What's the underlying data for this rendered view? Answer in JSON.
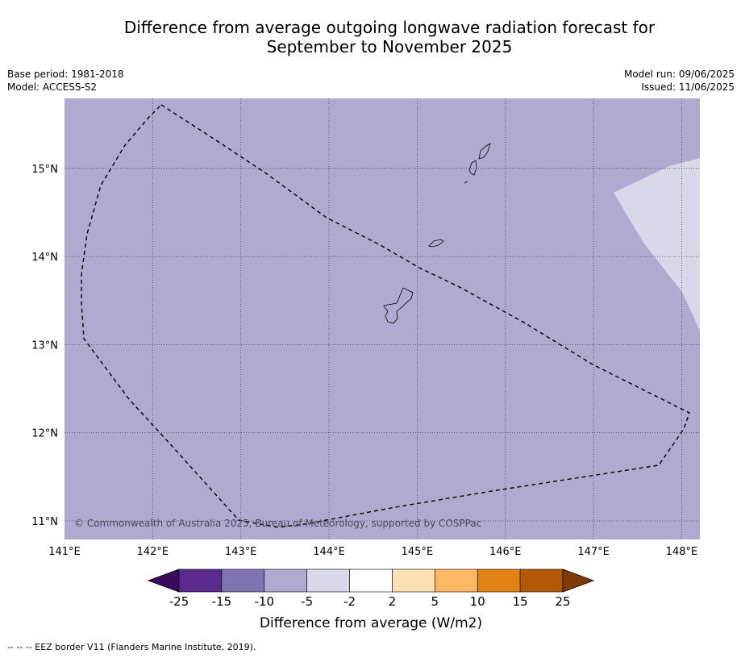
{
  "title": {
    "line1": "Difference from average outgoing longwave radiation forecast for",
    "line2": "September to November 2025"
  },
  "meta": {
    "base_period": "Base period: 1981-2018",
    "model": "Model: ACCESS-S2",
    "model_run": "Model run: 09/06/2025",
    "issued": "Issued: 11/06/2025"
  },
  "map": {
    "lon_range": [
      141.0,
      148.2
    ],
    "lat_range": [
      10.8,
      15.8
    ],
    "lon_ticks": [
      141,
      142,
      143,
      144,
      145,
      146,
      147,
      148
    ],
    "lon_tick_labels": [
      "141°E",
      "142°E",
      "143°E",
      "144°E",
      "145°E",
      "146°E",
      "147°E",
      "148°E"
    ],
    "lat_ticks": [
      11,
      12,
      13,
      14,
      15
    ],
    "lat_tick_labels": [
      "11°N",
      "12°N",
      "13°N",
      "14°N",
      "15°N"
    ],
    "background_color": "#b0aad0",
    "light_region_color": "#d8d8ea",
    "copyright": "© Commonwealth of Australia 2025, Bureau of Meteorology, supported by COSPPac"
  },
  "colorbar": {
    "labels": [
      "-25",
      "-15",
      "-10",
      "-5",
      "-2",
      "2",
      "5",
      "10",
      "15",
      "25"
    ],
    "colors": [
      "#3a0a5e",
      "#5b2a8c",
      "#8174b1",
      "#b0aad0",
      "#d8d8ea",
      "#ffffff",
      "#fde0b4",
      "#fcb862",
      "#e08214",
      "#b35806",
      "#7f3b08"
    ],
    "title": "Difference from average (W/m2)"
  },
  "footnote": "--  --  -- EEZ border V11 (Flanders Marine Institute, 2019)."
}
